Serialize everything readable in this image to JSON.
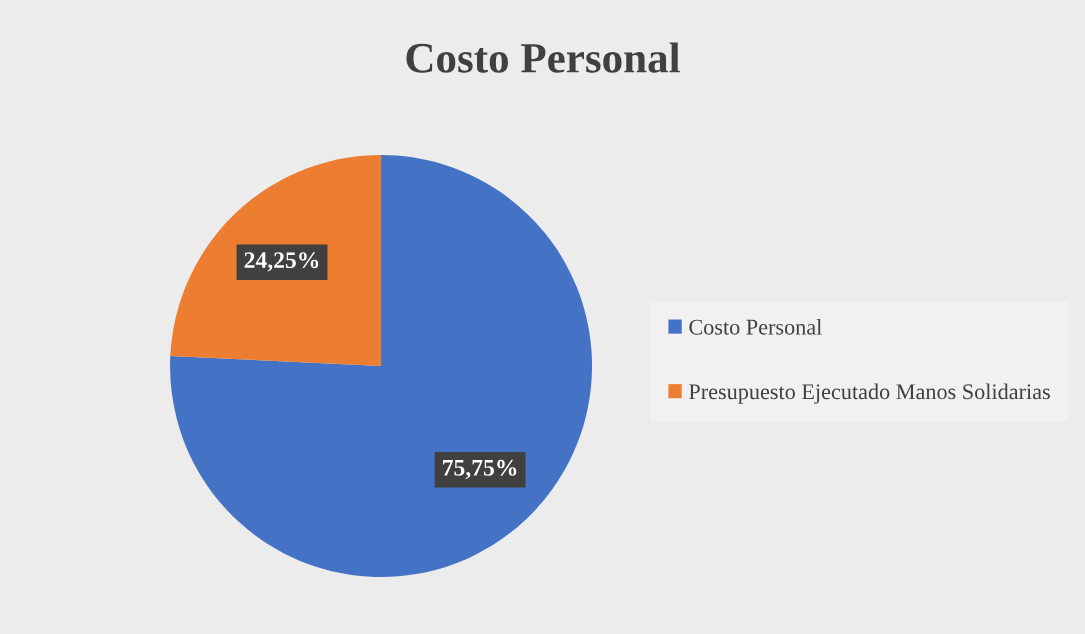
{
  "chart_data": {
    "type": "pie",
    "title": "Costo Personal",
    "categories": [
      "Costo Personal",
      "Presupuesto Ejecutado Manos Solidarias"
    ],
    "values": [
      75.75,
      24.25
    ],
    "colors": [
      "#4472c4",
      "#ed7d31"
    ],
    "value_labels": [
      "75,75%",
      "24,25%"
    ],
    "legend": "right"
  }
}
